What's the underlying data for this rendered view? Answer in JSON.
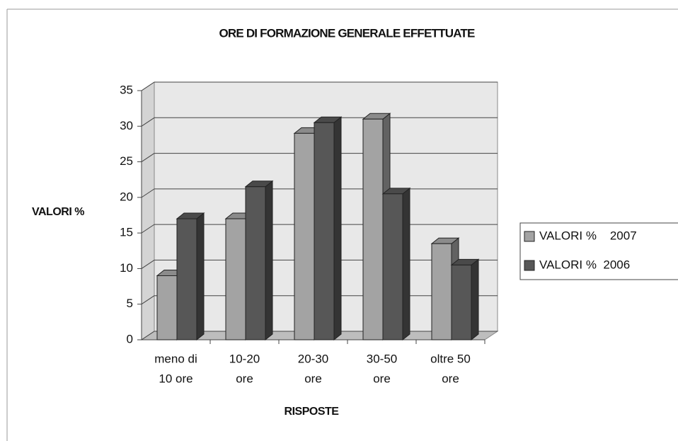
{
  "chart_data": {
    "type": "bar3d",
    "title": "ORE DI FORMAZIONE GENERALE EFFETTUATE",
    "x_label": "RISPOSTE",
    "y_label": "VALORI %",
    "categories": [
      [
        "meno di",
        "10 ore"
      ],
      [
        "10-20",
        "ore"
      ],
      [
        "20-30",
        "ore"
      ],
      [
        "30-50",
        "ore"
      ],
      [
        "oltre 50",
        "ore"
      ]
    ],
    "series": [
      {
        "name": "VALORI %    2007",
        "color": "#a3a3a3",
        "values": [
          9,
          17,
          29,
          31,
          13.5
        ]
      },
      {
        "name": "VALORI %  2006",
        "color": "#575757",
        "values": [
          17,
          21.5,
          30.5,
          20.5,
          10.5
        ]
      }
    ],
    "ylim": [
      0,
      35
    ],
    "yticks": [
      0,
      5,
      10,
      15,
      20,
      25,
      30,
      35
    ],
    "grid": true,
    "legend": "right"
  }
}
